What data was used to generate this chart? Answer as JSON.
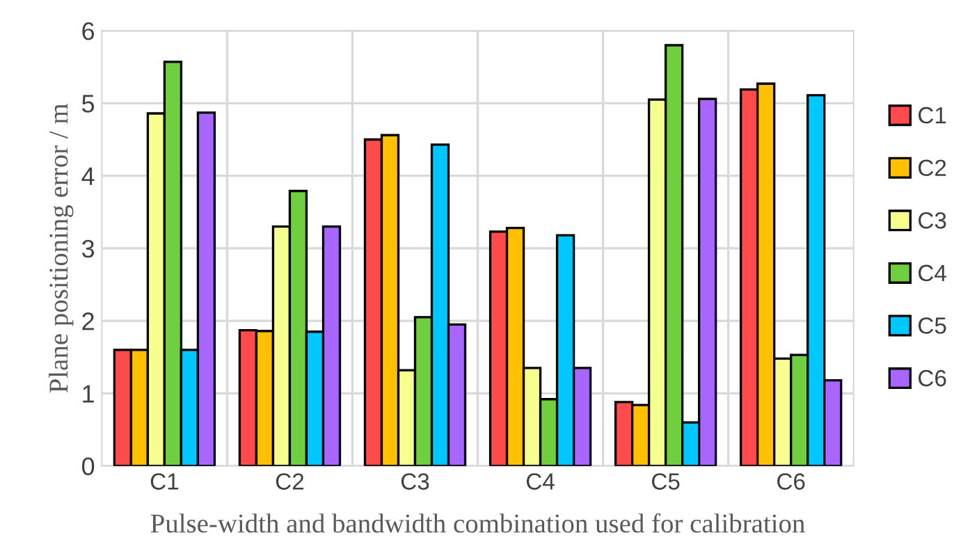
{
  "chart_data": {
    "type": "bar",
    "xlabel": "Pulse-width and bandwidth combination used for calibration",
    "ylabel": "Plane positioning error / m",
    "categories": [
      "C1",
      "C2",
      "C3",
      "C4",
      "C5",
      "C6"
    ],
    "series": [
      {
        "name": "C1",
        "color": "#ff4b4b",
        "values": [
          1.6,
          1.87,
          4.5,
          3.23,
          0.88,
          5.19
        ]
      },
      {
        "name": "C2",
        "color": "#ffc000",
        "values": [
          1.6,
          1.86,
          4.56,
          3.28,
          0.84,
          5.27
        ]
      },
      {
        "name": "C3",
        "color": "#f7ff8f",
        "values": [
          4.86,
          3.3,
          1.32,
          1.35,
          5.05,
          1.48
        ]
      },
      {
        "name": "C4",
        "color": "#6fcf3f",
        "values": [
          5.57,
          3.79,
          2.05,
          0.92,
          5.8,
          1.53
        ]
      },
      {
        "name": "C5",
        "color": "#00c8ff",
        "values": [
          1.6,
          1.85,
          4.43,
          3.18,
          0.6,
          5.11
        ]
      },
      {
        "name": "C6",
        "color": "#a866ff",
        "values": [
          4.87,
          3.3,
          1.95,
          1.35,
          5.06,
          1.18
        ]
      }
    ],
    "ylim": [
      0,
      6
    ],
    "yticks": [
      0,
      1,
      2,
      3,
      4,
      5,
      6
    ],
    "grid": true,
    "legend": "right"
  }
}
